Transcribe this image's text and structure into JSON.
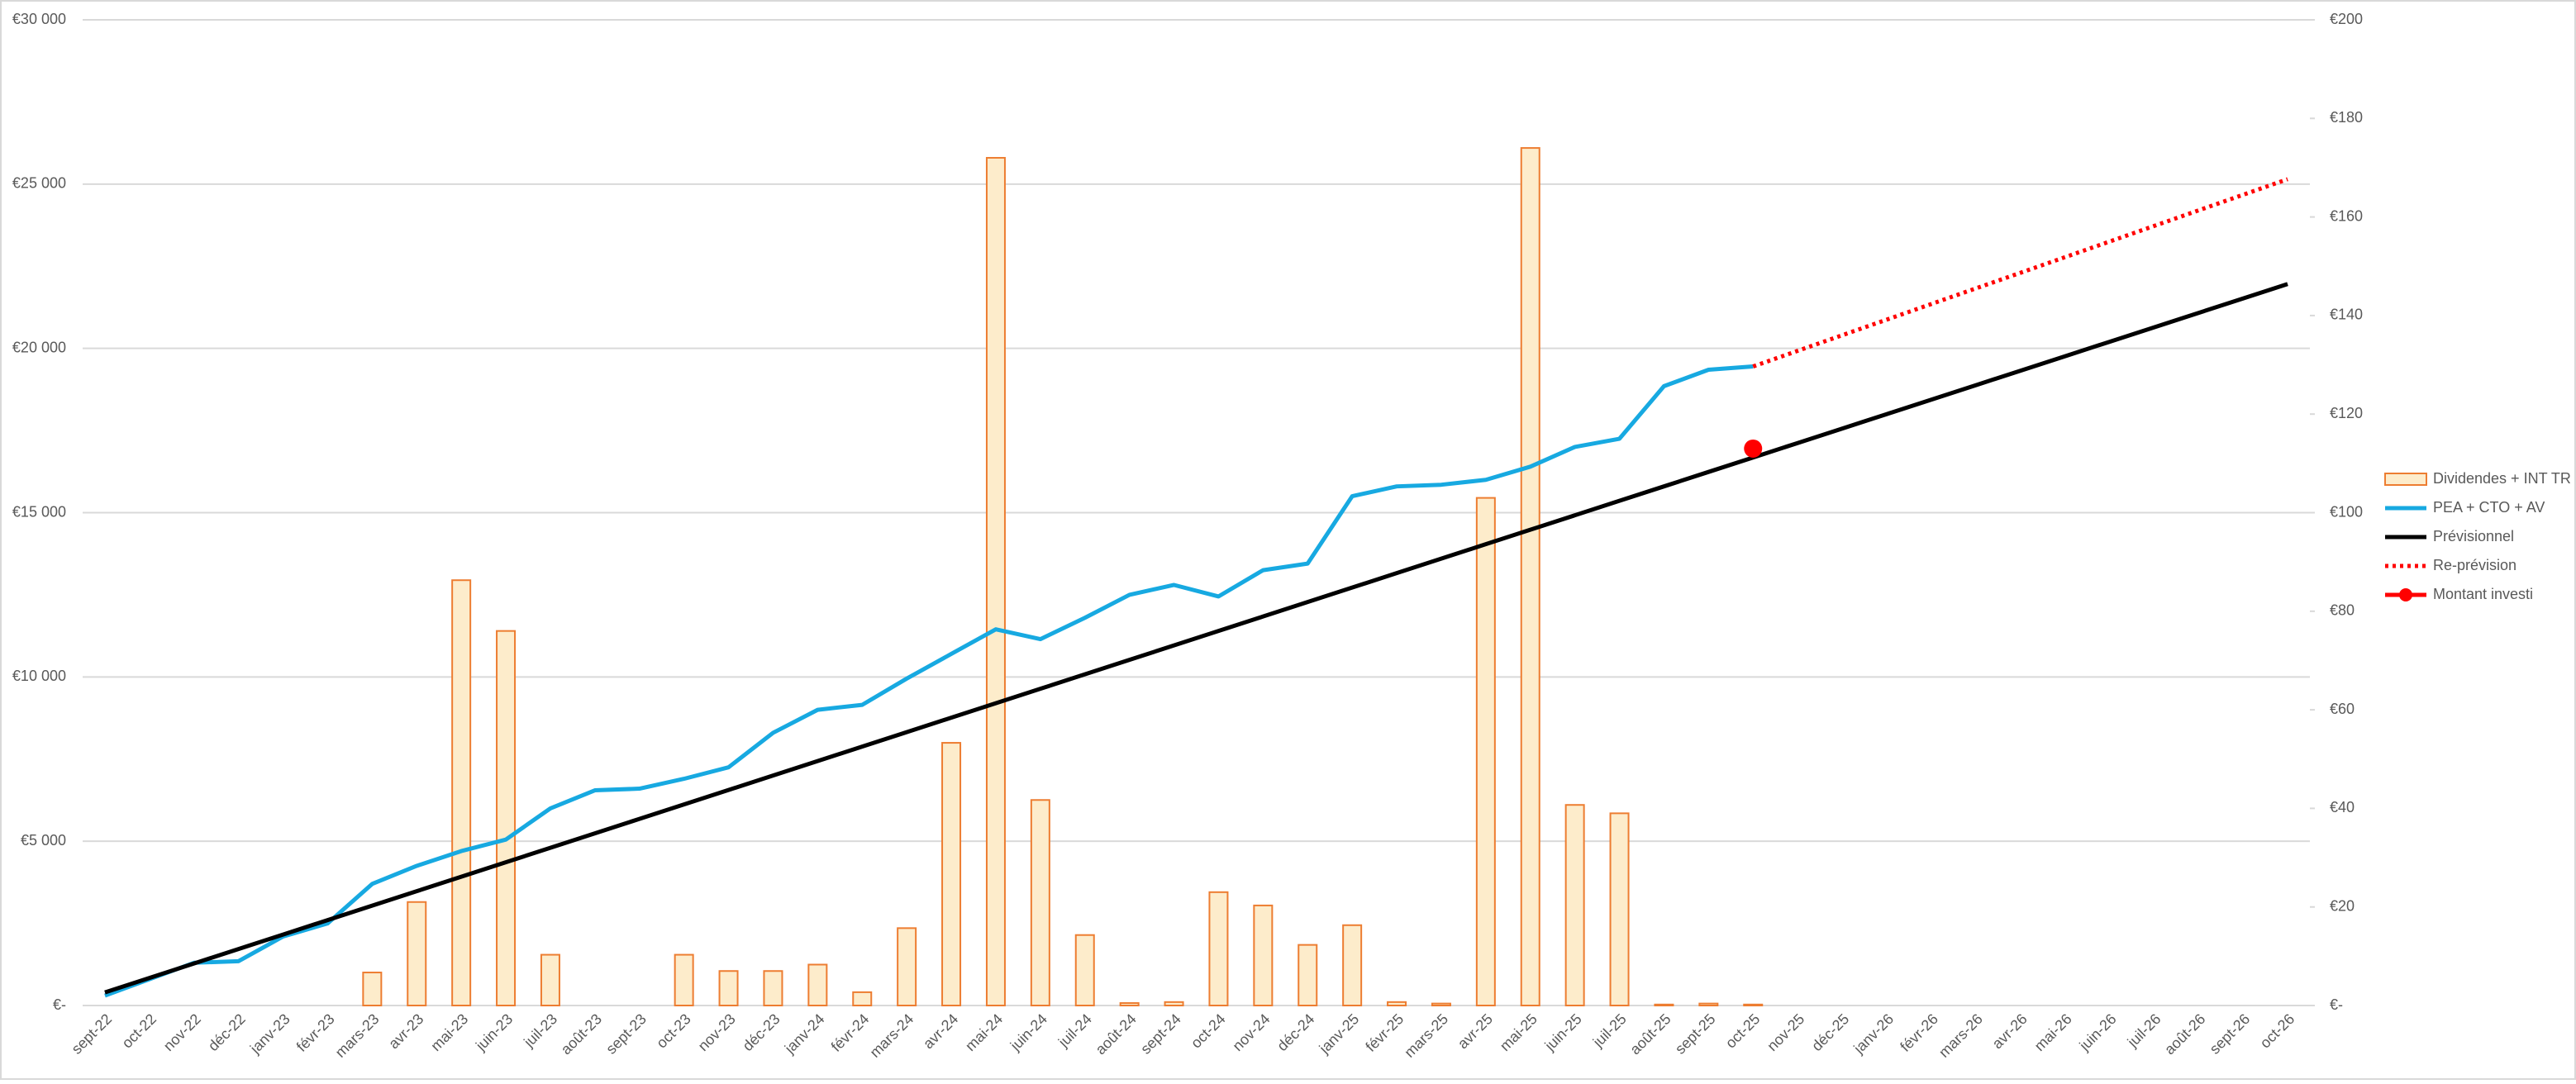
{
  "chart_data": {
    "type": "combo",
    "categories": [
      "sept-22",
      "oct-22",
      "nov-22",
      "déc-22",
      "janv-23",
      "févr-23",
      "mars-23",
      "avr-23",
      "mai-23",
      "juin-23",
      "juil-23",
      "août-23",
      "sept-23",
      "oct-23",
      "nov-23",
      "déc-23",
      "janv-24",
      "févr-24",
      "mars-24",
      "avr-24",
      "mai-24",
      "juin-24",
      "juil-24",
      "août-24",
      "sept-24",
      "oct-24",
      "nov-24",
      "déc-24",
      "janv-25",
      "févr-25",
      "mars-25",
      "avr-25",
      "mai-25",
      "juin-25",
      "juil-25",
      "août-25",
      "sept-25",
      "oct-25",
      "nov-25",
      "déc-25",
      "janv-26",
      "févr-26",
      "mars-26",
      "avr-26",
      "mai-26",
      "juin-26",
      "juil-26",
      "août-26",
      "sept-26",
      "oct-26"
    ],
    "ylim": [
      0,
      30000
    ],
    "yticks": [
      {
        "value": 0,
        "label": "€-"
      },
      {
        "value": 5000,
        "label": "€5 000"
      },
      {
        "value": 10000,
        "label": "€10 000"
      },
      {
        "value": 15000,
        "label": "€15 000"
      },
      {
        "value": 20000,
        "label": "€20 000"
      },
      {
        "value": 25000,
        "label": "€25 000"
      },
      {
        "value": 30000,
        "label": "€30 000"
      }
    ],
    "y2lim": [
      0,
      200
    ],
    "y2ticks": [
      {
        "value": 0,
        "label": "€-"
      },
      {
        "value": 20,
        "label": "€20"
      },
      {
        "value": 40,
        "label": "€40"
      },
      {
        "value": 60,
        "label": "€60"
      },
      {
        "value": 80,
        "label": "€80"
      },
      {
        "value": 100,
        "label": "€100"
      },
      {
        "value": 120,
        "label": "€120"
      },
      {
        "value": 140,
        "label": "€140"
      },
      {
        "value": 160,
        "label": "€160"
      },
      {
        "value": 180,
        "label": "€180"
      },
      {
        "value": 200,
        "label": "€200"
      }
    ],
    "grid": true,
    "legend": "right",
    "series": [
      {
        "name": "Dividendes + INT TR",
        "kind": "bar",
        "axis": "y2",
        "color": "#ed7d31",
        "fill": "#fdeccb",
        "values": [
          null,
          null,
          null,
          null,
          null,
          null,
          6.7,
          21,
          86.3,
          76,
          10.3,
          null,
          null,
          10.3,
          7,
          7,
          8.3,
          2.7,
          15.7,
          53.3,
          172,
          41.7,
          14.3,
          0.5,
          0.7,
          23,
          20.3,
          12.3,
          16.3,
          0.7,
          0.4,
          103,
          174,
          40.7,
          39,
          0.2,
          0.4,
          0.2,
          null,
          null,
          null,
          null,
          null,
          null,
          null,
          null,
          null,
          null,
          null,
          null
        ]
      },
      {
        "name": "PEA + CTO + AV",
        "kind": "line",
        "color": "#17a9e1",
        "values": [
          300,
          800,
          1300,
          1350,
          2100,
          2500,
          3700,
          4250,
          4700,
          5050,
          6000,
          6550,
          6600,
          6900,
          7250,
          8300,
          9000,
          9150,
          9950,
          10700,
          11450,
          11150,
          11800,
          12500,
          12800,
          12450,
          13250,
          13450,
          15500,
          15800,
          15850,
          16000,
          16400,
          17000,
          17250,
          18850,
          19350,
          19450,
          null,
          null,
          null,
          null,
          null,
          null,
          null,
          null,
          null,
          null,
          null,
          null
        ]
      },
      {
        "name": "Prévisionnel",
        "kind": "line",
        "color": "#000000",
        "values": [
          400,
          840,
          1280,
          1720,
          2160,
          2600,
          3040,
          3480,
          3920,
          4360,
          4800,
          5240,
          5680,
          6120,
          6560,
          7000,
          7440,
          7880,
          8320,
          8760,
          9200,
          9640,
          10080,
          10520,
          10960,
          11400,
          11840,
          12280,
          12720,
          13160,
          13600,
          14040,
          14480,
          14920,
          15360,
          15800,
          16240,
          16680,
          17120,
          17560,
          18000,
          18440,
          18880,
          19320,
          19760,
          20200,
          20640,
          21080,
          21520,
          21960
        ]
      },
      {
        "name": "Re-prévision",
        "kind": "line",
        "style": "dotted",
        "color": "#ff0000",
        "values": [
          null,
          null,
          null,
          null,
          null,
          null,
          null,
          null,
          null,
          null,
          null,
          null,
          null,
          null,
          null,
          null,
          null,
          null,
          null,
          null,
          null,
          null,
          null,
          null,
          null,
          null,
          null,
          null,
          null,
          null,
          null,
          null,
          null,
          null,
          null,
          null,
          null,
          19450,
          19925,
          20400,
          20875,
          21350,
          21825,
          22300,
          22775,
          23250,
          23725,
          24200,
          24675,
          25150
        ]
      },
      {
        "name": "Montant investi",
        "kind": "line",
        "marker": true,
        "color": "#ff0000",
        "values": [
          null,
          null,
          null,
          null,
          null,
          null,
          null,
          null,
          null,
          null,
          null,
          null,
          null,
          null,
          null,
          null,
          null,
          null,
          null,
          null,
          null,
          null,
          null,
          null,
          null,
          null,
          null,
          null,
          null,
          null,
          null,
          null,
          null,
          null,
          null,
          null,
          null,
          16950,
          null,
          null,
          null,
          null,
          null,
          null,
          null,
          null,
          null,
          null,
          null,
          null
        ]
      }
    ]
  }
}
